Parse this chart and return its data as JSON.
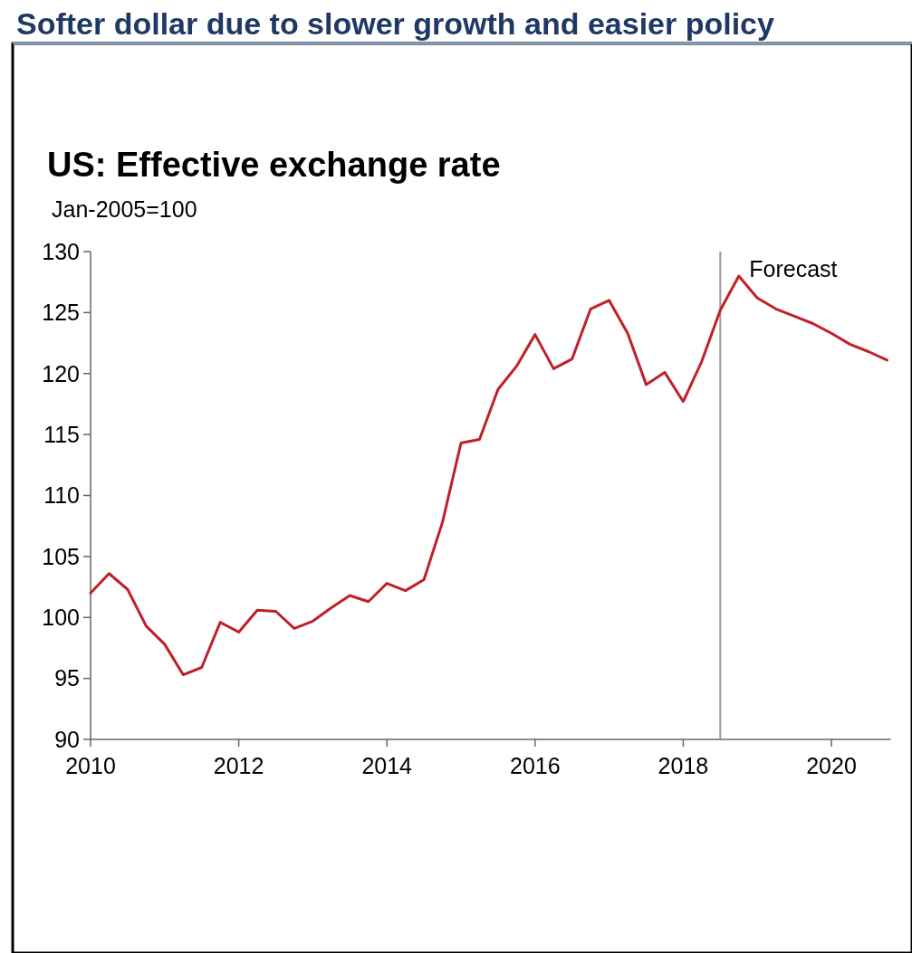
{
  "chart_data": {
    "type": "line",
    "title": "Softer dollar due to slower growth and easier policy",
    "subtitle": "US: Effective exchange rate",
    "ylabel": "Jan-2005=100",
    "x": [
      2010,
      2010.25,
      2010.5,
      2010.75,
      2011,
      2011.25,
      2011.5,
      2011.75,
      2012,
      2012.25,
      2012.5,
      2012.75,
      2013,
      2013.25,
      2013.5,
      2013.75,
      2014,
      2014.25,
      2014.5,
      2014.75,
      2015,
      2015.25,
      2015.5,
      2015.75,
      2016,
      2016.25,
      2016.5,
      2016.75,
      2017,
      2017.25,
      2017.5,
      2017.75,
      2018,
      2018.25,
      2018.5,
      2018.75,
      2019,
      2019.25,
      2019.5,
      2019.75,
      2020,
      2020.25,
      2020.5,
      2020.75
    ],
    "series": [
      {
        "color": "#c0202a",
        "values": [
          102.0,
          103.6,
          102.3,
          99.3,
          97.8,
          95.3,
          95.9,
          99.6,
          98.8,
          100.6,
          100.5,
          99.1,
          99.7,
          100.8,
          101.8,
          101.3,
          102.8,
          102.2,
          103.1,
          107.8,
          114.3,
          114.6,
          118.7,
          120.6,
          123.2,
          120.4,
          121.2,
          125.3,
          126.0,
          123.3,
          119.1,
          120.1,
          117.7,
          121.0,
          125.2,
          128.0,
          126.2,
          125.3,
          124.7,
          124.1,
          123.3,
          122.4,
          121.8,
          121.1
        ]
      }
    ],
    "xlim": [
      2010,
      2020.8
    ],
    "xticks": [
      2010,
      2012,
      2014,
      2016,
      2018,
      2020
    ],
    "ylim": [
      90,
      130
    ],
    "yticks": [
      90,
      95,
      100,
      105,
      110,
      115,
      120,
      125,
      130
    ],
    "ref_lines": [
      {
        "axis": "x",
        "value": 2018.5,
        "label": "Forecast",
        "color": "#999999"
      }
    ],
    "grid": false,
    "marker": "none",
    "line_style": "solid"
  }
}
